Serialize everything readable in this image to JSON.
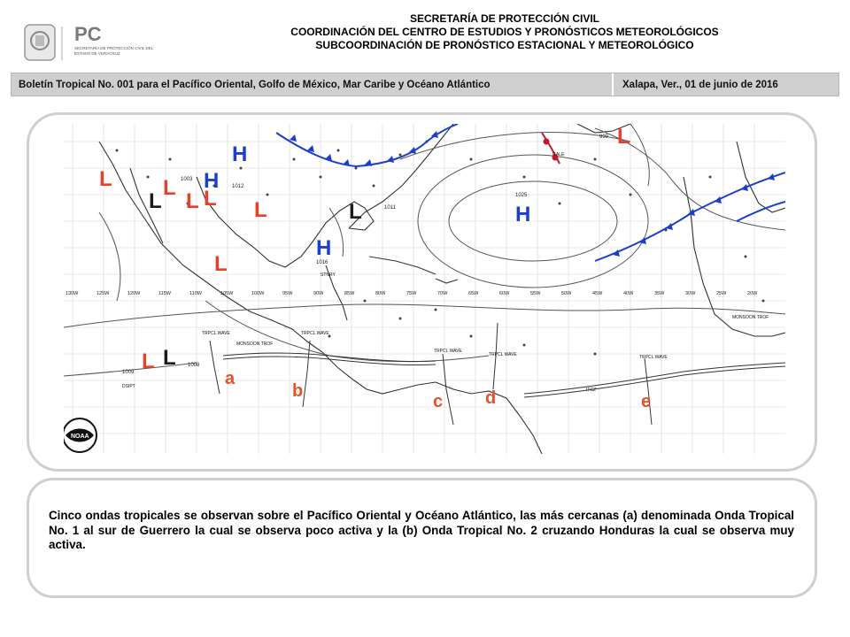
{
  "header": {
    "logo_text": "PC",
    "logo_caption": "SECRETARÍA DE PROTECCIÓN CIVIL DEL ESTADO DE VERACRUZ",
    "line1": "SECRETARÍA  DE  PROTECCIÓN  CIVIL",
    "line2": "COORDINACIÓN  DEL CENTRO  DE  ESTUDIOS Y PRONÓSTICOS  METEOROLÓGICOS",
    "line3": "SUBCOORDINACIÓN  DE  PRONÓSTICO  ESTACIONAL  Y  METEOROLÓGICO"
  },
  "bulletin": {
    "title": "Boletín  Tropical No. 001 para el Pacífico Oriental, Golfo de México, Mar Caribe y Océano Atlántico",
    "place_date": "Xalapa, Ver., 01 de junio de 2016"
  },
  "map": {
    "wave_letters": [
      "a",
      "b",
      "c",
      "d",
      "e"
    ],
    "wave_letter_color": "#e8502a",
    "low_label": "L",
    "high_label": "H",
    "low_color": "#e8402a",
    "high_color": "#1a3fc9",
    "longitudes": [
      "130W",
      "125W",
      "120W",
      "115W",
      "110W",
      "105W",
      "100W",
      "95W",
      "90W",
      "85W",
      "80W",
      "75W",
      "70W",
      "65W",
      "60W",
      "55W",
      "50W",
      "45W",
      "40W",
      "35W",
      "30W",
      "25W",
      "20W"
    ],
    "pressure_values": [
      "1016",
      "1011",
      "1025",
      "1009",
      "1008",
      "1012",
      "999",
      "1003"
    ],
    "annotations": [
      "TRPCL WAVE",
      "MONSOON TROF",
      "ITCZ",
      "GALE",
      "DSIPT",
      "STNRY"
    ],
    "noaa_logo_text": "NOAA"
  },
  "description": "Cinco ondas tropicales se observan sobre el Pacífico Oriental y Océano Atlántico, las más cercanas (a) denominada Onda Tropical No. 1 al sur de Guerrero la cual se observa poco activa y la (b) Onda Tropical No. 2 cruzando Honduras la cual se observa muy activa."
}
